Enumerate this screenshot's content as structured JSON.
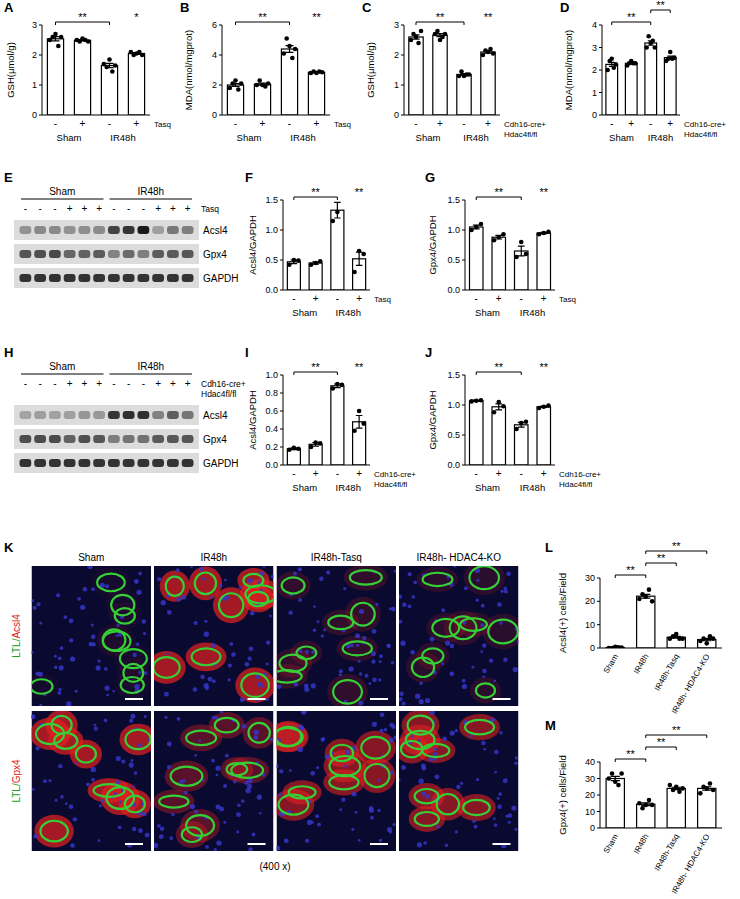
{
  "chart_data": [
    {
      "type": "bar",
      "panel": "A",
      "y_label": "GSH(μmol/g)",
      "categories": [
        "-",
        "+",
        "-",
        "+"
      ],
      "condition": [
        "Tasq"
      ],
      "group_labels": [
        "Sham",
        "IR48h"
      ],
      "values": [
        2.54,
        2.49,
        1.65,
        2.05
      ],
      "errors": [
        0.07,
        0.02,
        0.07,
        0.03
      ],
      "points": [
        [
          2.5,
          2.6,
          2.7,
          2.3,
          2.6
        ],
        [
          2.5,
          2.45,
          2.55,
          2.5,
          2.45
        ],
        [
          1.7,
          1.6,
          1.85,
          1.45,
          1.65
        ],
        [
          2.1,
          2.0,
          2.05,
          2.1,
          2.0
        ]
      ],
      "ylim": [
        0,
        3
      ],
      "yticks": [
        0,
        1,
        2,
        3
      ],
      "color": "#ffffff",
      "annotations": [
        {
          "text": "**",
          "from": 0,
          "to": 2
        },
        {
          "text": "*",
          "from": 3,
          "to": 3
        }
      ]
    },
    {
      "type": "bar",
      "panel": "B",
      "y_label": "MDA(nmol/mgprot)",
      "categories": [
        "-",
        "+",
        "-",
        "+"
      ],
      "condition": [
        "Tasq"
      ],
      "group_labels": [
        "Sham",
        "IR48h"
      ],
      "values": [
        2.0,
        2.06,
        4.4,
        2.85
      ],
      "errors": [
        0.1,
        0.07,
        0.22,
        0.03
      ],
      "points": [
        [
          1.8,
          2.1,
          2.3,
          1.7,
          2.1
        ],
        [
          2.0,
          2.3,
          2.0,
          1.9,
          2.1
        ],
        [
          4.1,
          5.1,
          4.6,
          3.8,
          4.4
        ],
        [
          2.8,
          2.9,
          2.8,
          2.9,
          2.85
        ]
      ],
      "ylim": [
        0,
        6
      ],
      "yticks": [
        0,
        2,
        4,
        6
      ],
      "color": "#ffffff",
      "annotations": [
        {
          "text": "**",
          "from": 0,
          "to": 2
        },
        {
          "text": "**",
          "from": 3,
          "to": 3
        }
      ]
    },
    {
      "type": "bar",
      "panel": "C",
      "y_label": "GSH(μmol/g)",
      "categories": [
        "-",
        "+",
        "-",
        "+"
      ],
      "condition": [
        "Cdh16-cre+",
        "Hdac4fl/fl"
      ],
      "group_labels": [
        "Sham",
        "IR48h"
      ],
      "values": [
        2.6,
        2.66,
        1.35,
        2.1
      ],
      "errors": [
        0.07,
        0.05,
        0.03,
        0.04
      ],
      "points": [
        [
          2.5,
          2.7,
          2.6,
          2.4,
          2.8
        ],
        [
          2.7,
          2.8,
          2.5,
          2.6,
          2.7
        ],
        [
          1.3,
          1.45,
          1.3,
          1.35,
          1.35
        ],
        [
          2.0,
          2.15,
          2.1,
          2.2,
          2.05
        ]
      ],
      "ylim": [
        0,
        3
      ],
      "yticks": [
        0,
        1,
        2,
        3
      ],
      "color": "#ffffff",
      "annotations": [
        {
          "text": "**",
          "from": 0,
          "to": 2
        },
        {
          "text": "**",
          "from": 3,
          "to": 3
        }
      ]
    },
    {
      "type": "bar",
      "panel": "D",
      "y_label": "MDA(nmol/mgprot)",
      "categories": [
        "-",
        "+",
        "-",
        "+"
      ],
      "condition": [
        "Cdh16-cre+",
        "Hdac4fl/fl"
      ],
      "group_labels": [
        "Sham",
        "IR48h"
      ],
      "values": [
        2.25,
        2.3,
        3.2,
        2.55
      ],
      "errors": [
        0.09,
        0.04,
        0.1,
        0.07
      ],
      "points": [
        [
          2.0,
          2.4,
          2.5,
          2.1,
          2.25
        ],
        [
          2.2,
          2.3,
          2.4,
          2.3,
          2.3
        ],
        [
          3.0,
          3.5,
          3.2,
          3.3,
          3.0
        ],
        [
          2.4,
          2.5,
          2.8,
          2.5,
          2.55
        ]
      ],
      "ylim": [
        0,
        4
      ],
      "yticks": [
        0,
        1,
        2,
        3,
        4
      ],
      "color": "#ffffff",
      "annotations": [
        {
          "text": "**",
          "from": 0,
          "to": 2
        },
        {
          "text": "**",
          "from": 2,
          "to": 3
        }
      ]
    },
    {
      "type": "bar",
      "panel": "F",
      "y_label": "Acsl4/GAPDH",
      "categories": [
        "-",
        "+",
        "-",
        "+"
      ],
      "condition": [
        "Tasq"
      ],
      "group_labels": [
        "Sham",
        "IR48h"
      ],
      "values": [
        0.47,
        0.45,
        1.33,
        0.52
      ],
      "errors": [
        0.03,
        0.02,
        0.13,
        0.11
      ],
      "points": [
        [
          0.42,
          0.5,
          0.49
        ],
        [
          0.42,
          0.45,
          0.48
        ],
        [
          1.15,
          1.3,
          1.55
        ],
        [
          0.3,
          0.65,
          0.6
        ]
      ],
      "ylim": [
        0,
        1.5
      ],
      "yticks": [
        {
          "value": 0,
          "label": "0.0"
        },
        0.5,
        {
          "value": 1,
          "label": "1.0"
        },
        1.5
      ],
      "color": "#ffffff",
      "annotations": [
        {
          "text": "**",
          "from": 0,
          "to": 2
        },
        {
          "text": "**",
          "from": 3,
          "to": 3
        }
      ]
    },
    {
      "type": "bar",
      "panel": "G",
      "y_label": "Gpx4/GAPDH",
      "categories": [
        "-",
        "+",
        "-",
        "+"
      ],
      "condition": [
        "Tasq"
      ],
      "group_labels": [
        "Sham",
        "IR48h"
      ],
      "values": [
        1.05,
        0.88,
        0.65,
        0.95
      ],
      "errors": [
        0.03,
        0.03,
        0.08,
        0.01
      ],
      "points": [
        [
          1.0,
          1.05,
          1.1
        ],
        [
          0.83,
          0.88,
          0.93
        ],
        [
          0.55,
          0.8,
          0.6
        ],
        [
          0.93,
          0.95,
          0.97
        ]
      ],
      "ylim": [
        0,
        1.5
      ],
      "yticks": [
        {
          "value": 0,
          "label": "0.0"
        },
        0.5,
        {
          "value": 1,
          "label": "1.0"
        },
        1.5
      ],
      "color": "#ffffff",
      "annotations": [
        {
          "text": "**",
          "from": 0,
          "to": 2
        },
        {
          "text": "**",
          "from": 3,
          "to": 3
        }
      ]
    },
    {
      "type": "bar",
      "panel": "I",
      "y_label": "Acsl4/GAPDH",
      "categories": [
        "-",
        "+",
        "-",
        "+"
      ],
      "condition": [
        "Cdh16-cre+",
        "Hdac4fl/fl"
      ],
      "group_labels": [
        "Sham",
        "IR48h"
      ],
      "values": [
        0.18,
        0.23,
        0.88,
        0.48
      ],
      "errors": [
        0.01,
        0.02,
        0.02,
        0.07
      ],
      "points": [
        [
          0.17,
          0.19,
          0.18
        ],
        [
          0.2,
          0.25,
          0.24
        ],
        [
          0.85,
          0.9,
          0.89
        ],
        [
          0.38,
          0.6,
          0.46
        ]
      ],
      "ylim": [
        0,
        1
      ],
      "yticks": [
        {
          "value": 0,
          "label": "0.0"
        },
        0.2,
        0.4,
        0.6,
        0.8,
        {
          "value": 1,
          "label": "1.0"
        }
      ],
      "color": "#ffffff",
      "annotations": [
        {
          "text": "**",
          "from": 0,
          "to": 2
        },
        {
          "text": "**",
          "from": 3,
          "to": 3
        }
      ]
    },
    {
      "type": "bar",
      "panel": "J",
      "y_label": "Gpx4/GAPDH",
      "categories": [
        "-",
        "+",
        "-",
        "+"
      ],
      "condition": [
        "Cdh16-cre+",
        "Hdac4fl/fl"
      ],
      "group_labels": [
        "Sham",
        "IR48h"
      ],
      "values": [
        1.07,
        0.97,
        0.67,
        0.97
      ],
      "errors": [
        0.01,
        0.05,
        0.04,
        0.01
      ],
      "points": [
        [
          1.06,
          1.07,
          1.08
        ],
        [
          0.88,
          1.05,
          0.98
        ],
        [
          0.6,
          0.7,
          0.72
        ],
        [
          0.95,
          0.97,
          0.99
        ]
      ],
      "ylim": [
        0,
        1.5
      ],
      "yticks": [
        {
          "value": 0,
          "label": "0.0"
        },
        0.5,
        {
          "value": 1,
          "label": "1.0"
        },
        1.5
      ],
      "color": "#ffffff",
      "annotations": [
        {
          "text": "**",
          "from": 0,
          "to": 2
        },
        {
          "text": "**",
          "from": 3,
          "to": 3
        }
      ]
    },
    {
      "type": "bar",
      "panel": "L",
      "y_label": "Acsl4(+) cells/Field",
      "categories": [
        "Sham",
        "IR48h",
        "IR48h-Tasq",
        "IR48h- HDAC4-KO"
      ],
      "values": [
        0.2,
        22.2,
        4.6,
        3.6
      ],
      "errors": [
        0.1,
        0.8,
        0.4,
        0.5
      ],
      "points": [
        [
          0,
          0,
          0.5,
          0.3,
          0.2
        ],
        [
          21,
          23,
          22,
          25,
          20
        ],
        [
          4,
          5,
          6,
          4,
          4
        ],
        [
          3,
          4,
          2,
          5,
          4
        ]
      ],
      "ylim": [
        0,
        30
      ],
      "yticks": [
        0,
        10,
        20,
        30
      ],
      "color": "#ffffff",
      "annotations": [
        {
          "text": "**",
          "from": 0,
          "to": 1
        },
        {
          "text": "**",
          "from": 1,
          "to": 2
        },
        {
          "text": "**",
          "from": 1,
          "to": 3
        }
      ]
    },
    {
      "type": "bar",
      "panel": "M",
      "y_label": "Gpx4(+) cells/Field",
      "categories": [
        "Sham",
        "IR48h",
        "IR48h-Tasq",
        "IR48h- HDAC4-KO"
      ],
      "values": [
        30,
        14.4,
        24,
        24
      ],
      "errors": [
        1.3,
        0.8,
        0.7,
        1.0
      ],
      "points": [
        [
          30,
          33,
          28,
          26,
          33
        ],
        [
          15,
          12,
          14,
          17,
          14
        ],
        [
          26,
          23,
          25,
          22,
          24
        ],
        [
          21,
          25,
          24,
          27,
          23
        ]
      ],
      "ylim": [
        0,
        40
      ],
      "yticks": [
        0,
        10,
        20,
        30,
        40
      ],
      "color": "#ffffff",
      "annotations": [
        {
          "text": "**",
          "from": 0,
          "to": 1
        },
        {
          "text": "**",
          "from": 1,
          "to": 2
        },
        {
          "text": "**",
          "from": 1,
          "to": 3
        }
      ]
    }
  ],
  "blots": [
    {
      "panel": "E",
      "group_labels": [
        "Sham",
        "IR48h"
      ],
      "signs": [
        "-",
        "-",
        "-",
        "+",
        "+",
        "+",
        "-",
        "-",
        "-",
        "+",
        "+",
        "+"
      ],
      "condition": [
        "Tasq"
      ],
      "rows": [
        "Acsl4",
        "Gpx4",
        "GAPDH"
      ]
    },
    {
      "panel": "H",
      "group_labels": [
        "Sham",
        "IR48h"
      ],
      "signs": [
        "-",
        "-",
        "-",
        "+",
        "+",
        "+",
        "-",
        "-",
        "-",
        "+",
        "+",
        "+"
      ],
      "condition": [
        "Cdh16-cre+",
        "Hdac4fl/fl"
      ],
      "rows": [
        "Acsl4",
        "Gpx4",
        "GAPDH"
      ]
    }
  ],
  "micrographs": {
    "panel": "K",
    "columns": [
      "Sham",
      "IR48h",
      "IR48h-Tasq",
      "IR48h- HDAC4-KO"
    ],
    "rows": [
      "LTL/Acsl4",
      "LTL/Gpx4"
    ],
    "magnification": "(400 x)"
  }
}
